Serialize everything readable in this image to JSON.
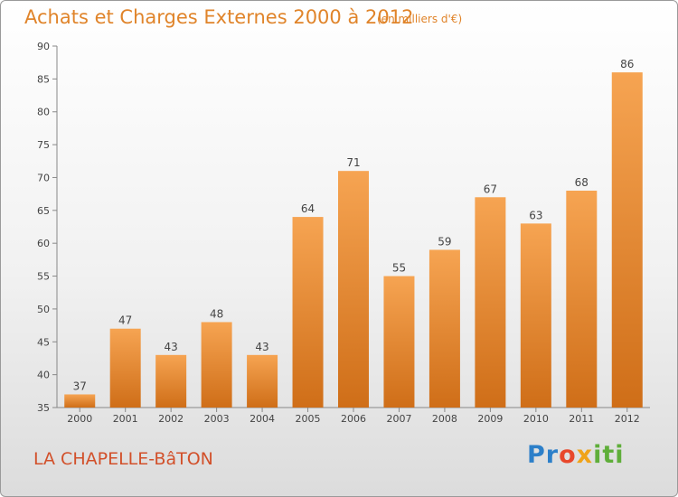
{
  "header": {
    "title": "Achats et Charges Externes 2000 à 2012",
    "subtitle": "(en milliers d'€)"
  },
  "footer": {
    "commune": "LA CHAPELLE-BâTON",
    "logo_parts": [
      "Pr",
      "o",
      "x",
      "iti"
    ]
  },
  "colors": {
    "bar_top": "#f6a452",
    "bar_bottom": "#cf6e18",
    "title": "#e0842a",
    "commune": "#d2502a"
  },
  "chart_data": {
    "type": "bar",
    "title": "Achats et Charges Externes 2000 à 2012",
    "subtitle": "(en milliers d'€)",
    "xlabel": "",
    "ylabel": "",
    "categories": [
      "2000",
      "2001",
      "2002",
      "2003",
      "2004",
      "2005",
      "2006",
      "2007",
      "2008",
      "2009",
      "2010",
      "2011",
      "2012"
    ],
    "values": [
      37,
      47,
      43,
      48,
      43,
      64,
      71,
      55,
      59,
      67,
      63,
      68,
      86
    ],
    "ylim": [
      35,
      90
    ],
    "yticks": [
      35,
      40,
      45,
      50,
      55,
      60,
      65,
      70,
      75,
      80,
      85,
      90
    ],
    "grid": false,
    "legend": "none",
    "data_labels": true
  }
}
